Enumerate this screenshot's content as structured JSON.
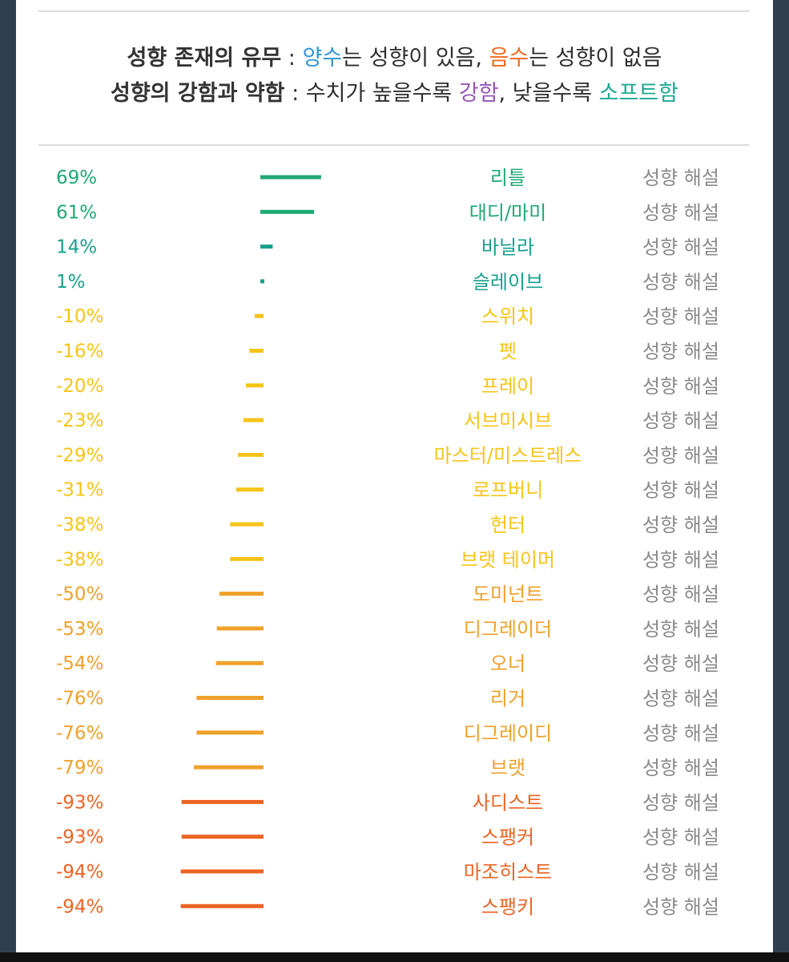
{
  "header": {
    "line1": {
      "term": "성향 존재의 유무",
      "sep": " : ",
      "positive": "양수",
      "positive_desc": "는 성향이 있음, ",
      "negative": "음수",
      "negative_desc": "는 성향이 없음"
    },
    "line2": {
      "term": "성향의 강함과 약함",
      "sep": " : ",
      "prefix": "수치가 높을수록 ",
      "strong": "강함",
      "middle": ", 낮을수록 ",
      "soft": "소프트함"
    }
  },
  "colors": {
    "positive": "#1fa874",
    "positive_small": "#17a08e",
    "neg_yellow": "#f6c416",
    "neg_amber": "#f0a02a",
    "neg_red": "#ec6424",
    "detail": "#8a8a8a",
    "strong": "#9756b7",
    "soft": "#1eaa92",
    "positive_word": "#2f95d6",
    "negative_word": "#ee6a1f"
  },
  "detail_label": "성향 해설",
  "chart_data": {
    "type": "bar",
    "orientation": "horizontal",
    "value_unit": "%",
    "categories": [
      "리틀",
      "대디/마미",
      "바닐라",
      "슬레이브",
      "스위치",
      "펫",
      "프레이",
      "서브미시브",
      "마스터/미스트레스",
      "로프버니",
      "헌터",
      "브랫 테이머",
      "도미넌트",
      "디그레이더",
      "오너",
      "리거",
      "디그레이디",
      "브랫",
      "사디스트",
      "스팽커",
      "마조히스트",
      "스팽키"
    ],
    "values": [
      69,
      61,
      14,
      1,
      -10,
      -16,
      -20,
      -23,
      -29,
      -31,
      -38,
      -38,
      -50,
      -53,
      -54,
      -76,
      -76,
      -79,
      -93,
      -93,
      -94,
      -94
    ],
    "labels": [
      "69%",
      "61%",
      "14%",
      "1%",
      "-10%",
      "-16%",
      "-20%",
      "-23%",
      "-29%",
      "-31%",
      "-38%",
      "-38%",
      "-50%",
      "-53%",
      "-54%",
      "-76%",
      "-76%",
      "-79%",
      "-93%",
      "-93%",
      "-94%",
      "-94%"
    ],
    "colors": [
      "#1fa874",
      "#1fa874",
      "#17a08e",
      "#17a08e",
      "#f6c416",
      "#f6c416",
      "#f6c416",
      "#f6c416",
      "#f6c416",
      "#f6c416",
      "#f6c416",
      "#f6c416",
      "#f0a02a",
      "#f0a02a",
      "#f0a02a",
      "#f0a02a",
      "#f0a02a",
      "#f0a02a",
      "#ec6424",
      "#ec6424",
      "#ec6424",
      "#ec6424"
    ],
    "title": "",
    "xlabel": "",
    "ylabel": "",
    "xlim": [
      -100,
      100
    ],
    "grid": false,
    "legend": "none"
  }
}
